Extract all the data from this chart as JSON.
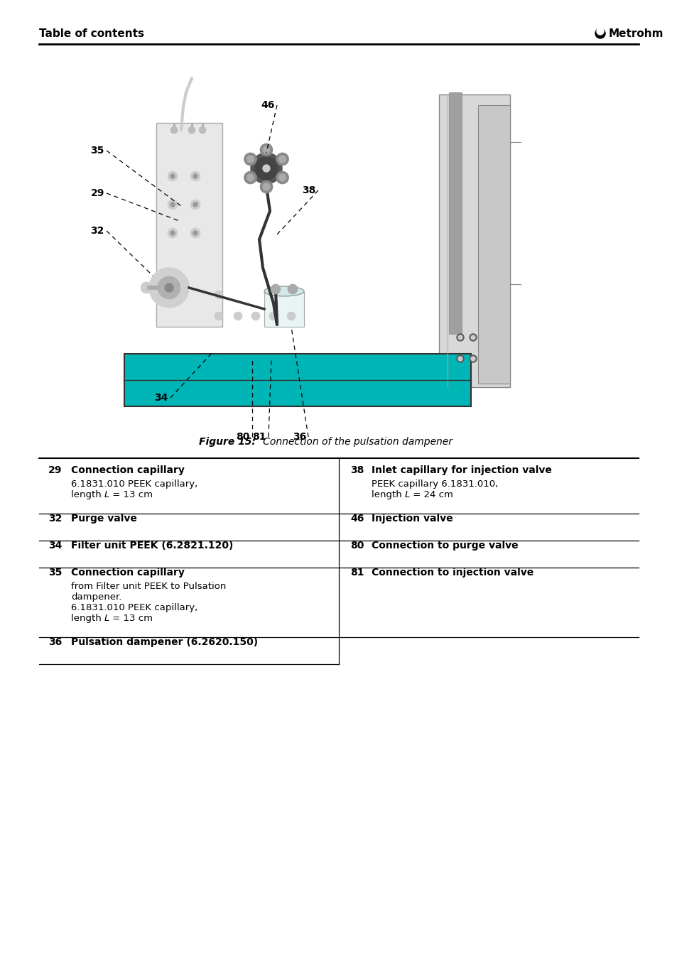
{
  "header_left": "Table of contents",
  "header_right": "Metrohm",
  "figure_caption_bold": "Figure 15:",
  "figure_caption_italic": "   Connection of the pulsation dampener",
  "table_entries_left": [
    {
      "number": "29",
      "title": "Connection capillary",
      "description": [
        "6.1831.010 PEEK capillary,",
        "length $L$ = 13 cm"
      ]
    },
    {
      "number": "32",
      "title": "Purge valve",
      "description": []
    },
    {
      "number": "34",
      "title": "Filter unit PEEK (6.2821.120)",
      "description": []
    },
    {
      "number": "35",
      "title": "Connection capillary",
      "description": [
        "from Filter unit PEEK to Pulsation",
        "dampener.",
        "6.1831.010 PEEK capillary,",
        "length $L$ = 13 cm"
      ]
    },
    {
      "number": "36",
      "title": "Pulsation dampener (6.2620.150)",
      "description": []
    }
  ],
  "table_entries_right": [
    {
      "number": "38",
      "title": "Inlet capillary for injection valve",
      "description": [
        "PEEK capillary 6.1831.010,",
        "length $L$ = 24 cm"
      ]
    },
    {
      "number": "46",
      "title": "Injection valve",
      "description": []
    },
    {
      "number": "80",
      "title": "Connection to purge valve",
      "description": []
    },
    {
      "number": "81",
      "title": "Connection to injection valve",
      "description": []
    }
  ],
  "teal_color": "#00B5B5",
  "bg_color": "#ffffff",
  "text_color": "#000000"
}
